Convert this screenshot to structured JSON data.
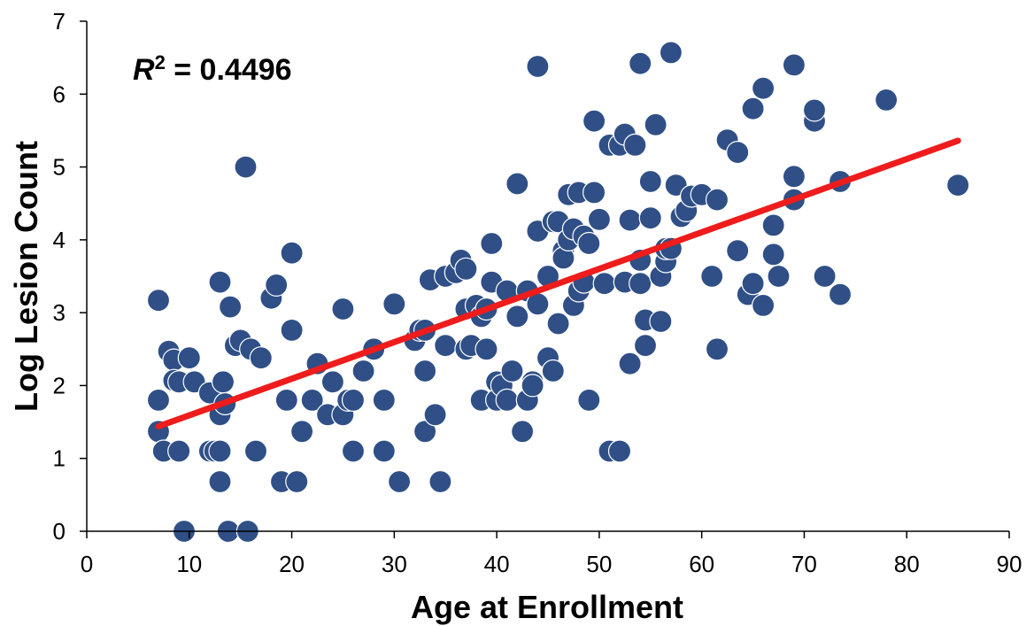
{
  "chart_data": {
    "type": "scatter",
    "title": "",
    "xlabel": "Age at Enrollment",
    "ylabel": "Log Lesion Count",
    "xlim": [
      0,
      90
    ],
    "ylim": [
      0,
      7
    ],
    "xticks": [
      0,
      10,
      20,
      30,
      40,
      50,
      60,
      70,
      80,
      90
    ],
    "yticks": [
      0,
      1,
      2,
      3,
      4,
      5,
      6,
      7
    ],
    "xtick_labels": [
      "0",
      "10",
      "20",
      "30",
      "40",
      "50",
      "60",
      "70",
      "80",
      "90"
    ],
    "ytick_labels": [
      "0",
      "1",
      "2",
      "3",
      "4",
      "5",
      "6",
      "7"
    ],
    "grid": false,
    "legend": "none",
    "annotation": {
      "r_symbol": "R",
      "sup": "2",
      "rest": " = 0.4496"
    },
    "colors": {
      "points": "#2f4f86",
      "point_stroke": "#ffffff",
      "trend": "#ee1c1c",
      "axis": "#000000"
    },
    "trendline": {
      "x": [
        7,
        85
      ],
      "y": [
        1.44,
        5.36
      ]
    },
    "series": [
      {
        "points": [
          [
            7,
            3.17
          ],
          [
            7,
            1.8
          ],
          [
            7,
            1.37
          ],
          [
            7.5,
            1.1
          ],
          [
            8,
            2.47
          ],
          [
            8.5,
            2.35
          ],
          [
            8.5,
            2.07
          ],
          [
            9,
            1.1
          ],
          [
            9,
            2.05
          ],
          [
            9.5,
            0
          ],
          [
            10,
            2.38
          ],
          [
            10.5,
            2.05
          ],
          [
            12,
            1.9
          ],
          [
            12,
            1.1
          ],
          [
            12.5,
            1.1
          ],
          [
            13,
            3.42
          ],
          [
            13,
            1.6
          ],
          [
            13,
            1.1
          ],
          [
            13,
            0.68
          ],
          [
            13.3,
            2.05
          ],
          [
            13.5,
            1.75
          ],
          [
            13.8,
            0
          ],
          [
            14,
            3.08
          ],
          [
            14.5,
            2.55
          ],
          [
            15,
            2.62
          ],
          [
            15.5,
            5.0
          ],
          [
            15.7,
            0
          ],
          [
            16,
            2.5
          ],
          [
            16.5,
            1.1
          ],
          [
            17,
            2.38
          ],
          [
            18,
            3.2
          ],
          [
            18.5,
            3.38
          ],
          [
            19,
            0.68
          ],
          [
            19.5,
            1.8
          ],
          [
            20,
            3.82
          ],
          [
            20,
            2.76
          ],
          [
            20.5,
            0.68
          ],
          [
            21,
            1.37
          ],
          [
            22,
            1.8
          ],
          [
            22.5,
            2.3
          ],
          [
            23.5,
            1.6
          ],
          [
            24,
            2.05
          ],
          [
            25,
            3.05
          ],
          [
            25,
            1.6
          ],
          [
            25.5,
            1.8
          ],
          [
            26,
            1.8
          ],
          [
            26,
            1.1
          ],
          [
            27,
            2.2
          ],
          [
            28,
            2.5
          ],
          [
            29,
            1.8
          ],
          [
            29,
            1.1
          ],
          [
            30,
            3.12
          ],
          [
            30.5,
            0.68
          ],
          [
            32,
            2.62
          ],
          [
            32.5,
            2.76
          ],
          [
            33,
            2.76
          ],
          [
            33,
            2.2
          ],
          [
            33,
            1.37
          ],
          [
            33.5,
            3.45
          ],
          [
            34,
            1.6
          ],
          [
            34.5,
            0.68
          ],
          [
            35,
            3.5
          ],
          [
            35,
            2.55
          ],
          [
            36,
            3.55
          ],
          [
            36.5,
            3.72
          ],
          [
            37,
            3.6
          ],
          [
            37,
            3.05
          ],
          [
            37,
            2.5
          ],
          [
            37.5,
            2.55
          ],
          [
            38,
            3.1
          ],
          [
            38.5,
            1.8
          ],
          [
            38.5,
            2.95
          ],
          [
            39,
            3.05
          ],
          [
            39,
            2.5
          ],
          [
            39.5,
            3.95
          ],
          [
            39.5,
            3.42
          ],
          [
            40,
            2.05
          ],
          [
            40,
            1.8
          ],
          [
            40.5,
            2.0
          ],
          [
            41,
            3.3
          ],
          [
            41,
            1.8
          ],
          [
            41.5,
            2.2
          ],
          [
            42,
            4.77
          ],
          [
            42,
            2.95
          ],
          [
            42.5,
            1.37
          ],
          [
            43,
            3.3
          ],
          [
            43,
            1.8
          ],
          [
            43.5,
            2.05
          ],
          [
            43.5,
            2.0
          ],
          [
            44,
            3.12
          ],
          [
            44,
            4.12
          ],
          [
            44,
            6.38
          ],
          [
            45,
            2.38
          ],
          [
            45,
            3.5
          ],
          [
            45.5,
            4.25
          ],
          [
            45.5,
            2.2
          ],
          [
            46,
            2.85
          ],
          [
            46,
            4.25
          ],
          [
            46.5,
            3.85
          ],
          [
            46.5,
            3.75
          ],
          [
            47,
            4.62
          ],
          [
            47,
            4.0
          ],
          [
            47.5,
            4.15
          ],
          [
            47.5,
            3.1
          ],
          [
            48,
            4.65
          ],
          [
            48,
            3.3
          ],
          [
            48.5,
            3.42
          ],
          [
            48.5,
            4.05
          ],
          [
            49,
            3.95
          ],
          [
            49,
            1.8
          ],
          [
            49.5,
            4.65
          ],
          [
            49.5,
            5.63
          ],
          [
            50,
            4.28
          ],
          [
            50.5,
            3.4
          ],
          [
            51,
            5.3
          ],
          [
            51,
            1.1
          ],
          [
            52,
            5.3
          ],
          [
            52,
            1.1
          ],
          [
            52.5,
            5.45
          ],
          [
            52.5,
            3.42
          ],
          [
            53,
            4.27
          ],
          [
            53,
            2.3
          ],
          [
            53.5,
            5.3
          ],
          [
            54,
            3.4
          ],
          [
            54,
            3.72
          ],
          [
            54,
            6.42
          ],
          [
            54.5,
            2.9
          ],
          [
            54.5,
            2.55
          ],
          [
            55,
            4.3
          ],
          [
            55,
            4.8
          ],
          [
            55.5,
            5.58
          ],
          [
            56,
            2.88
          ],
          [
            56,
            3.5
          ],
          [
            56.5,
            3.7
          ],
          [
            56.5,
            3.88
          ],
          [
            57,
            6.57
          ],
          [
            57,
            3.88
          ],
          [
            57.5,
            4.75
          ],
          [
            58,
            4.32
          ],
          [
            58.5,
            4.4
          ],
          [
            59,
            4.6
          ],
          [
            60,
            4.62
          ],
          [
            61,
            3.5
          ],
          [
            61.5,
            4.55
          ],
          [
            61.5,
            2.5
          ],
          [
            62.5,
            5.37
          ],
          [
            63.5,
            3.85
          ],
          [
            63.5,
            5.2
          ],
          [
            64.5,
            3.25
          ],
          [
            65,
            3.4
          ],
          [
            65,
            5.8
          ],
          [
            66,
            3.1
          ],
          [
            66,
            6.08
          ],
          [
            67,
            4.2
          ],
          [
            67,
            3.8
          ],
          [
            67.5,
            3.5
          ],
          [
            69,
            4.87
          ],
          [
            69,
            4.55
          ],
          [
            69,
            6.4
          ],
          [
            71,
            5.63
          ],
          [
            71,
            5.78
          ],
          [
            72,
            3.5
          ],
          [
            73.5,
            3.25
          ],
          [
            73.5,
            4.8
          ],
          [
            78,
            5.92
          ],
          [
            85,
            4.75
          ]
        ]
      }
    ]
  }
}
